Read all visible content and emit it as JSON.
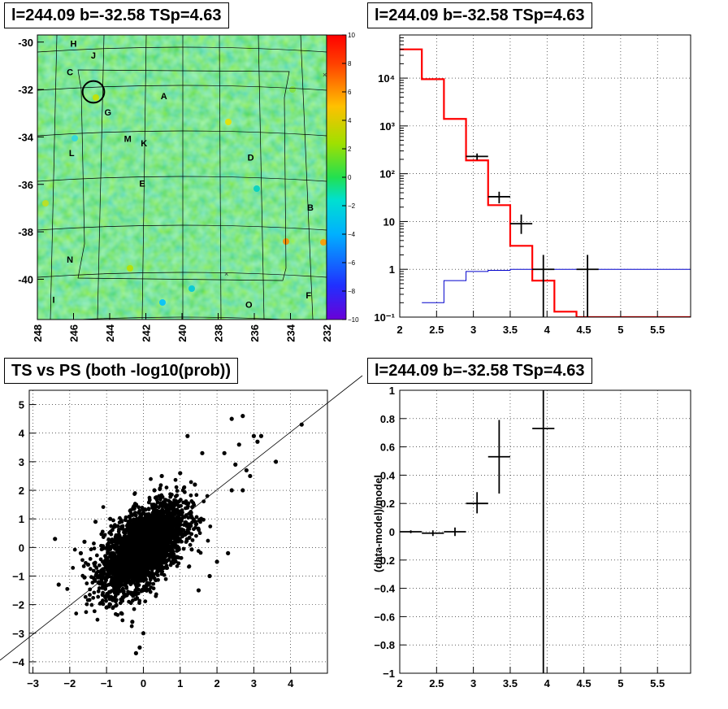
{
  "panels": {
    "skymap_title": "l=244.09 b=-32.58 TSp=4.63",
    "spectrum_title": "l=244.09 b=-32.58 TSp=4.63",
    "scatter_title": "TS vs PS (both -log10(prob))",
    "residual_title": "l=244.09 b=-32.58 TSp=4.63"
  },
  "colors": {
    "map_base": "#33e633",
    "model": "#ff0000",
    "background": "#0000cc",
    "data": "#000000"
  },
  "chart_data": [
    {
      "type": "heatmap",
      "x_ticks": [
        "248",
        "246",
        "244",
        "242",
        "240",
        "238",
        "236",
        "234",
        "232"
      ],
      "y_ticks": [
        "-30",
        "-32",
        "-34",
        "-36",
        "-38",
        "-40"
      ],
      "xlim": [
        248,
        232
      ],
      "ylim": [
        -41.7,
        -29.7
      ],
      "colorbar_ticks": [
        "10",
        "8",
        "6",
        "4",
        "2",
        "0",
        "−2",
        "−4",
        "−6",
        "−8",
        "−10"
      ],
      "colorbar_range": [
        -10,
        10
      ],
      "labels": [
        {
          "text": "H",
          "l": 246.0,
          "b": -30.2
        },
        {
          "text": "J",
          "l": 244.9,
          "b": -30.7
        },
        {
          "text": "C",
          "l": 246.2,
          "b": -31.4
        },
        {
          "text": "A",
          "l": 241.0,
          "b": -32.4
        },
        {
          "text": "G",
          "l": 244.1,
          "b": -33.1
        },
        {
          "text": "M",
          "l": 243.0,
          "b": -34.2
        },
        {
          "text": "K",
          "l": 242.1,
          "b": -34.4
        },
        {
          "text": "L",
          "l": 246.1,
          "b": -34.8
        },
        {
          "text": "D",
          "l": 236.2,
          "b": -35.0
        },
        {
          "text": "E",
          "l": 242.2,
          "b": -36.1
        },
        {
          "text": "B",
          "l": 232.9,
          "b": -37.1
        },
        {
          "text": "N",
          "l": 246.2,
          "b": -39.3
        },
        {
          "text": "I",
          "l": 247.1,
          "b": -41.0
        },
        {
          "text": "O",
          "l": 236.3,
          "b": -41.2
        },
        {
          "text": "F",
          "l": 233.0,
          "b": -40.8
        }
      ],
      "marker_circle": {
        "l": 244.9,
        "b": -32.1,
        "r_deg": 0.6
      }
    },
    {
      "type": "line",
      "xlim": [
        2,
        5.95
      ],
      "ylim": [
        0.1,
        80000
      ],
      "y_scale": "log",
      "x_ticks": [
        "2",
        "2.5",
        "3",
        "3.5",
        "4",
        "4.5",
        "5",
        "5.5"
      ],
      "y_ticks": [
        "10⁻¹",
        "1",
        "10",
        "10²",
        "10³",
        "10⁴"
      ],
      "series": [
        {
          "style": "step",
          "color": "#ff0000",
          "edges": [
            2.0,
            2.3,
            2.6,
            2.9,
            3.2,
            3.5,
            3.8,
            4.1,
            4.4,
            5.95
          ],
          "values": [
            40000,
            9500,
            1400,
            190,
            22,
            3.1,
            0.58,
            0.13,
            0.1
          ]
        },
        {
          "style": "step",
          "color": "#0000cc",
          "edges": [
            2.3,
            2.6,
            2.9,
            3.2,
            3.5,
            3.8,
            4.1,
            4.4,
            5.95
          ],
          "values": [
            0.2,
            0.58,
            0.9,
            0.95,
            1.0,
            1.0,
            1.0,
            1.0
          ]
        },
        {
          "style": "errorbar",
          "color": "#000000",
          "points": [
            {
              "x": 3.05,
              "y": 230,
              "xerr": 0.15,
              "ylo": 195,
              "yhi": 265
            },
            {
              "x": 3.35,
              "y": 33,
              "xerr": 0.15,
              "ylo": 24,
              "yhi": 42
            },
            {
              "x": 3.65,
              "y": 9,
              "xerr": 0.15,
              "ylo": 5.5,
              "yhi": 14
            },
            {
              "x": 3.95,
              "y": 1.0,
              "xerr": 0.15,
              "ylo": 0.1,
              "yhi": 2.0
            },
            {
              "x": 4.55,
              "y": 1.0,
              "xerr": 0.15,
              "ylo": 0.1,
              "yhi": 2.0
            }
          ]
        }
      ]
    },
    {
      "type": "scatter",
      "xlim": [
        -3.1,
        5.0
      ],
      "ylim": [
        -4.4,
        5.5
      ],
      "x_ticks": [
        "−3",
        "−2",
        "−1",
        "0",
        "1",
        "2",
        "3",
        "4"
      ],
      "y_ticks": [
        "−4",
        "−3",
        "−2",
        "−1",
        "0",
        "1",
        "2",
        "3",
        "4",
        "5"
      ],
      "reference_line": {
        "from": [
          -3.1,
          -3.1
        ],
        "to": [
          5.0,
          5.0
        ]
      },
      "points": [
        [
          4.3,
          4.3
        ],
        [
          2.4,
          4.5
        ],
        [
          2.7,
          4.6
        ],
        [
          3.0,
          3.9
        ],
        [
          3.2,
          3.9
        ],
        [
          3.1,
          3.7
        ],
        [
          3.6,
          3.0
        ],
        [
          2.6,
          3.6
        ],
        [
          2.2,
          3.3
        ],
        [
          2.5,
          2.9
        ],
        [
          2.8,
          2.7
        ],
        [
          2.9,
          2.5
        ],
        [
          2.4,
          2.0
        ],
        [
          2.7,
          2.0
        ],
        [
          1.2,
          3.9
        ],
        [
          1.6,
          3.3
        ],
        [
          -2.3,
          -1.3
        ],
        [
          -2.4,
          0.3
        ],
        [
          -1.6,
          0.2
        ],
        [
          -1.7,
          -0.2
        ],
        [
          -1.0,
          -2.1
        ],
        [
          -0.2,
          -3.7
        ],
        [
          -0.1,
          -3.5
        ],
        [
          0.0,
          -3.0
        ],
        [
          2.0,
          -0.5
        ],
        [
          2.3,
          -0.2
        ],
        [
          1.8,
          -1.0
        ],
        [
          1.5,
          -1.5
        ],
        [
          -1.3,
          0.9
        ],
        [
          -0.9,
          1.0
        ],
        [
          -1.5,
          -0.6
        ],
        [
          -1.2,
          -1.0
        ],
        [
          0.5,
          2.5
        ],
        [
          0.3,
          2.0
        ],
        [
          1.0,
          2.6
        ],
        [
          1.4,
          2.2
        ],
        [
          -0.6,
          -2.3
        ],
        [
          -0.3,
          -2.6
        ]
      ],
      "cluster": {
        "cx": 0.0,
        "cy": 0.0,
        "sx": 0.55,
        "sy": 0.75,
        "rho": 0.55,
        "n": 3200
      }
    },
    {
      "type": "line",
      "xlim": [
        2,
        5.95
      ],
      "ylim": [
        -1,
        1
      ],
      "ylabel": "(data-model)/model",
      "x_ticks": [
        "2",
        "2.5",
        "3",
        "3.5",
        "4",
        "4.5",
        "5",
        "5.5"
      ],
      "y_ticks": [
        "−1",
        "−0.8",
        "−0.6",
        "−0.4",
        "−0.2",
        "0",
        "0.2",
        "0.4",
        "0.6",
        "0.8",
        "1"
      ],
      "series": [
        {
          "style": "errorbar",
          "color": "#000000",
          "points": [
            {
              "x": 2.15,
              "y": 0.0,
              "xerr": 0.15,
              "ylo": -0.01,
              "yhi": 0.01
            },
            {
              "x": 2.45,
              "y": -0.01,
              "xerr": 0.15,
              "ylo": -0.03,
              "yhi": 0.01
            },
            {
              "x": 2.75,
              "y": 0.0,
              "xerr": 0.15,
              "ylo": -0.03,
              "yhi": 0.03
            },
            {
              "x": 3.05,
              "y": 0.2,
              "xerr": 0.15,
              "ylo": 0.13,
              "yhi": 0.28
            },
            {
              "x": 3.35,
              "y": 0.53,
              "xerr": 0.15,
              "ylo": 0.27,
              "yhi": 0.79
            },
            {
              "x": 3.95,
              "y": 0.73,
              "xerr": 0.15,
              "ylo": -1.0,
              "yhi": 1.0
            }
          ]
        }
      ]
    }
  ]
}
